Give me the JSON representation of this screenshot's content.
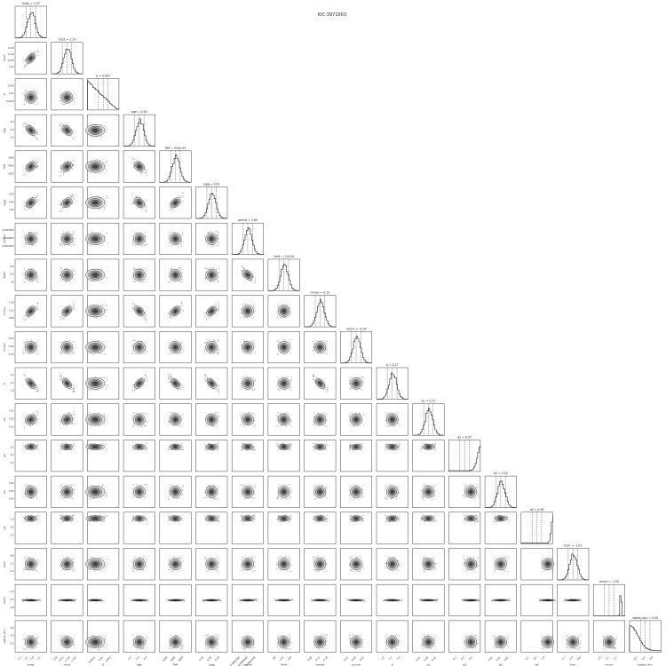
{
  "figure": {
    "title": "KIC 3971003"
  },
  "chart_data": {
    "type": "corner",
    "n_params": 18,
    "parameters": [
      {
        "label": "mass",
        "title": "mass = 1.57",
        "range": [
          1.3,
          1.9
        ],
        "ticks": [
          "1.2",
          "1.5",
          "1.8",
          "2.1"
        ]
      },
      {
        "label": "mcut",
        "title": "mcut = 1.19",
        "range": [
          1.01,
          1.27
        ],
        "ticks": [
          "1.00",
          "1.075",
          "1.150",
          "1.225"
        ]
      },
      {
        "label": "Z",
        "title": "Z = 0.001",
        "range": [
          0.0,
          0.06
        ],
        "ticks": [
          "0.0015",
          "0.03",
          "0.045"
        ]
      },
      {
        "label": "age",
        "title": "age = 4.90",
        "range": [
          3.5,
          6.5
        ],
        "ticks": [
          "4.0",
          "5.0",
          "6.0"
        ]
      },
      {
        "label": "Teff",
        "title": "Teff = 5344.03",
        "range": [
          5100,
          5600
        ],
        "ticks": [
          "5200",
          "5400",
          "5600"
        ]
      },
      {
        "label": "logg",
        "title": "logg = 4.41",
        "range": [
          4.2,
          4.6
        ],
        "ticks": [
          "4.30",
          "4.40",
          "4.50"
        ]
      },
      {
        "label": "period",
        "title": "period = 3.89",
        "range": [
          0.00025,
          0.0012
        ],
        "ticks": [
          "0.0001500",
          "0.0004500",
          "0.0007500"
        ]
      },
      {
        "label": "Fe/H",
        "title": "Fe/H = 110.09",
        "range": [
          80,
          140
        ],
        "ticks": [
          "90",
          "110",
          "130"
        ]
      },
      {
        "label": "mmax",
        "title": "mmax = 0.13",
        "range": [
          0.05,
          0.21
        ],
        "ticks": [
          "0.08",
          "0.13",
          "0.18"
        ]
      },
      {
        "label": "mcore",
        "title": "mcore = -0.09",
        "range": [
          -0.2,
          0.02
        ],
        "ticks": [
          "-0.15",
          "-0.09",
          "-0.03"
        ]
      },
      {
        "label": "b",
        "title": "b = 2.27",
        "range": [
          1.6,
          2.9
        ],
        "ticks": [
          "1.8",
          "2.2",
          "2.6"
        ]
      },
      {
        "label": "q1",
        "title": "q1 = 0.21",
        "range": [
          0.1,
          0.32
        ],
        "ticks": [
          "0.15",
          "0.20",
          "0.25"
        ]
      },
      {
        "label": "q2",
        "title": "q2 = 0.07",
        "range": [
          0.0,
          0.5
        ],
        "ticks": [
          "0.1",
          "0.3",
          "0.5"
        ]
      },
      {
        "label": "q3",
        "title": "q3 = 0.54",
        "range": [
          0.4,
          0.7
        ],
        "ticks": [
          "0.45",
          "0.55",
          "0.65"
        ]
      },
      {
        "label": "q4",
        "title": "q4 = 0.99",
        "range": [
          0.0,
          1.0
        ],
        "ticks": [
          "0.2",
          "0.6",
          "1.0"
        ]
      },
      {
        "label": "fcorr",
        "title": "fcorr = -1.01",
        "range": [
          -1.3,
          -0.7
        ],
        "ticks": [
          "-1.2",
          "-1.0",
          "-0.8"
        ]
      },
      {
        "label": "mcorr",
        "title": "mcorr = -1.55",
        "range": [
          -2.0,
          -1.0
        ],
        "ticks": [
          "-1.8",
          "-1.5",
          "-1.2"
        ]
      },
      {
        "label": "sigma_dnu",
        "title": "sigma_dnu = 0.00",
        "range": [
          0.0,
          0.8
        ],
        "ticks": [
          "0.2",
          "0.4",
          "0.6"
        ]
      }
    ],
    "grid": false,
    "contour_levels": 4,
    "quantile_lines": [
      0.16,
      0.5,
      0.84
    ]
  }
}
